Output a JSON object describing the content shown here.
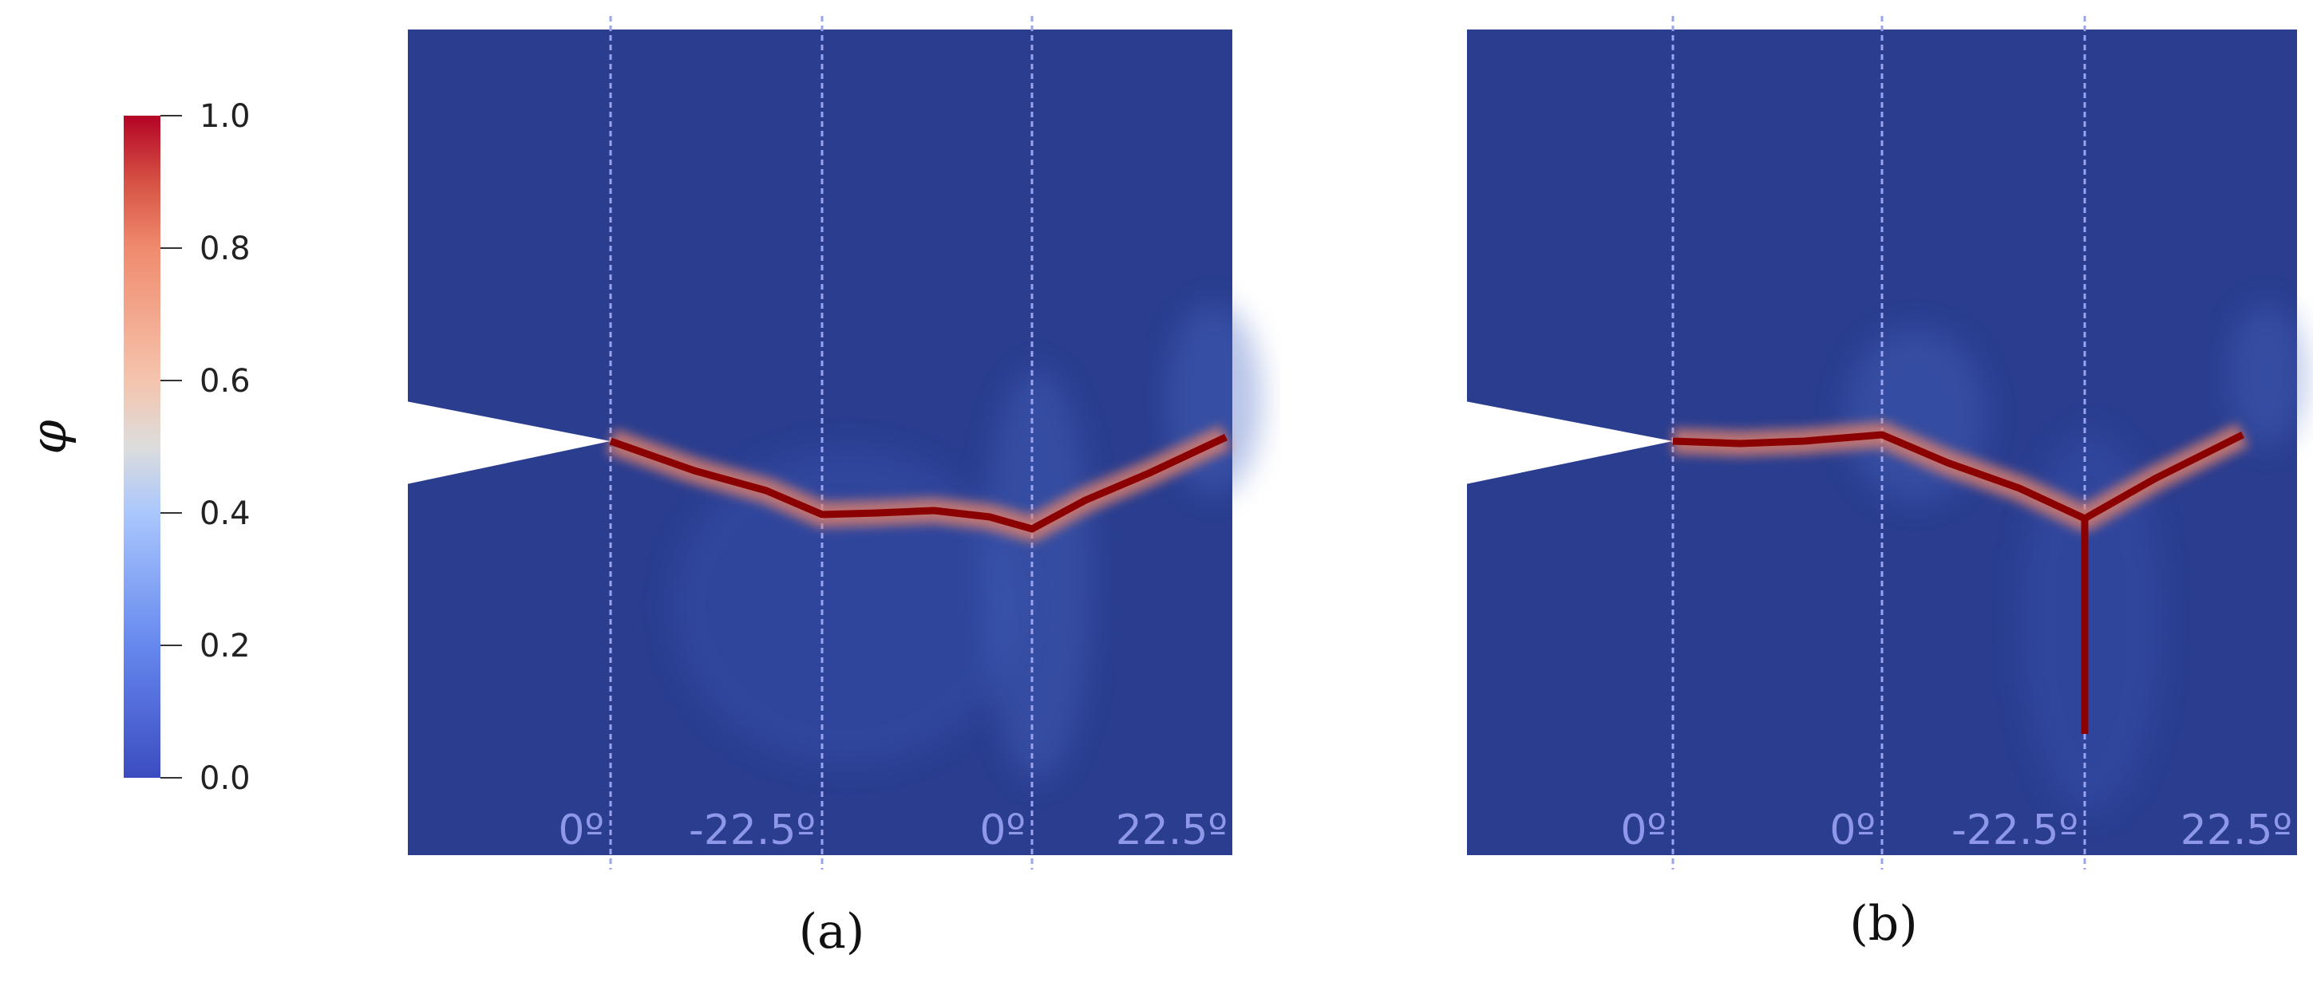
{
  "colorbar": {
    "symbol": "φ",
    "ticks": [
      "1.0",
      "0.8",
      "0.6",
      "0.4",
      "0.2",
      "0.0"
    ],
    "colors": {
      "low": "#3b4cc0",
      "mid": "#dddddd",
      "high": "#b40426"
    }
  },
  "panels": [
    {
      "caption": "(a)",
      "ply_labels": [
        "0º",
        "-22.5º",
        "0º",
        "22.5º"
      ]
    },
    {
      "caption": "(b)",
      "ply_labels": [
        "0º",
        "0º",
        "-22.5º",
        "22.5º"
      ]
    }
  ],
  "colors": {
    "background_field": "#2a3d8f",
    "crack": "#8b0000",
    "interface_line": "#9aa3ee"
  }
}
